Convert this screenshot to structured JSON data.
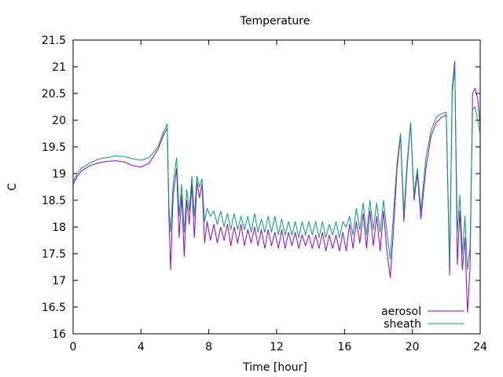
{
  "chart_data": {
    "type": "line",
    "title": "Temperature",
    "xlabel": "Time [hour]",
    "ylabel": "C",
    "xlim": [
      0,
      24
    ],
    "ylim": [
      16,
      21.5
    ],
    "xticks": [
      0,
      4,
      8,
      12,
      16,
      20,
      24
    ],
    "xtick_labels": [
      "0",
      "4",
      "8",
      "12",
      "16",
      "20",
      "24"
    ],
    "yticks": [
      16,
      16.5,
      17,
      17.5,
      18,
      18.5,
      19,
      19.5,
      20,
      20.5,
      21,
      21.5
    ],
    "ytick_labels": [
      "16",
      "16.5",
      "17",
      "17.5",
      "18",
      "18.5",
      "19",
      "19.5",
      "20",
      "20.5",
      "21",
      "21.5"
    ],
    "grid": false,
    "legend_position": "bottom-right",
    "series": [
      {
        "name": "aerosol",
        "color": "#9400d3",
        "x": [
          0,
          0.25,
          0.5,
          1,
          1.5,
          2,
          2.5,
          3,
          3.5,
          4,
          4.5,
          5,
          5.3,
          5.55,
          5.65,
          5.75,
          5.9,
          6.1,
          6.25,
          6.4,
          6.55,
          6.7,
          6.85,
          7.0,
          7.15,
          7.3,
          7.45,
          7.6,
          7.75,
          7.9,
          8.1,
          8.3,
          8.5,
          8.7,
          8.9,
          9.1,
          9.3,
          9.5,
          9.7,
          9.9,
          10.1,
          10.3,
          10.5,
          10.7,
          10.9,
          11.1,
          11.3,
          11.5,
          11.7,
          11.9,
          12.1,
          12.3,
          12.5,
          12.7,
          12.9,
          13.1,
          13.3,
          13.5,
          13.7,
          13.9,
          14.1,
          14.3,
          14.5,
          14.7,
          14.9,
          15.1,
          15.3,
          15.5,
          15.7,
          15.9,
          16.1,
          16.3,
          16.5,
          16.7,
          16.9,
          17.1,
          17.3,
          17.5,
          17.7,
          17.9,
          18.1,
          18.3,
          18.5,
          18.7,
          18.9,
          19.1,
          19.3,
          19.5,
          19.7,
          19.9,
          20.1,
          20.3,
          20.5,
          20.8,
          21.1,
          21.4,
          21.7,
          22.0,
          22.2,
          22.35,
          22.5,
          22.65,
          22.8,
          22.95,
          23.1,
          23.25,
          23.4,
          23.55,
          23.7,
          23.85,
          24.0
        ],
        "y": [
          18.8,
          18.95,
          19.05,
          19.15,
          19.2,
          19.23,
          19.24,
          19.22,
          19.15,
          19.12,
          19.2,
          19.45,
          19.7,
          19.85,
          18.2,
          17.2,
          18.6,
          19.1,
          17.8,
          18.6,
          17.45,
          18.5,
          18.05,
          18.8,
          17.8,
          18.85,
          18.55,
          18.8,
          17.7,
          18.1,
          17.75,
          18.05,
          17.7,
          18.0,
          17.75,
          18.05,
          17.65,
          18.0,
          17.7,
          18.05,
          17.65,
          17.95,
          17.7,
          18.0,
          17.65,
          17.95,
          17.6,
          17.95,
          17.65,
          17.9,
          17.6,
          17.95,
          17.6,
          17.9,
          17.65,
          17.9,
          17.6,
          17.85,
          17.65,
          17.85,
          17.6,
          17.85,
          17.6,
          17.9,
          17.55,
          17.85,
          17.6,
          17.85,
          17.55,
          17.9,
          17.55,
          18.05,
          17.6,
          18.1,
          17.7,
          18.25,
          17.6,
          18.3,
          17.65,
          18.2,
          17.55,
          18.3,
          17.55,
          17.05,
          18.0,
          19.1,
          19.7,
          18.1,
          19.15,
          19.95,
          18.5,
          19.0,
          18.15,
          19.1,
          19.7,
          19.95,
          20.05,
          20.1,
          17.1,
          20.6,
          21.1,
          17.3,
          18.3,
          17.2,
          17.8,
          16.4,
          17.2,
          20.5,
          20.6,
          20.4,
          19.9
        ]
      },
      {
        "name": "sheath",
        "color": "#009e73",
        "x": [
          0,
          0.25,
          0.5,
          1,
          1.5,
          2,
          2.5,
          3,
          3.5,
          4,
          4.5,
          5,
          5.3,
          5.55,
          5.65,
          5.75,
          5.9,
          6.1,
          6.25,
          6.4,
          6.55,
          6.7,
          6.85,
          7.0,
          7.15,
          7.3,
          7.45,
          7.6,
          7.75,
          7.9,
          8.1,
          8.3,
          8.5,
          8.7,
          8.9,
          9.1,
          9.3,
          9.5,
          9.7,
          9.9,
          10.1,
          10.3,
          10.5,
          10.7,
          10.9,
          11.1,
          11.3,
          11.5,
          11.7,
          11.9,
          12.1,
          12.3,
          12.5,
          12.7,
          12.9,
          13.1,
          13.3,
          13.5,
          13.7,
          13.9,
          14.1,
          14.3,
          14.5,
          14.7,
          14.9,
          15.1,
          15.3,
          15.5,
          15.7,
          15.9,
          16.1,
          16.3,
          16.5,
          16.7,
          16.9,
          17.1,
          17.3,
          17.5,
          17.7,
          17.9,
          18.1,
          18.3,
          18.5,
          18.7,
          18.9,
          19.1,
          19.3,
          19.5,
          19.7,
          19.9,
          20.1,
          20.3,
          20.5,
          20.8,
          21.1,
          21.4,
          21.7,
          22.0,
          22.2,
          22.35,
          22.5,
          22.65,
          22.8,
          22.95,
          23.1,
          23.25,
          23.4,
          23.55,
          23.7,
          23.85,
          24.0
        ],
        "y": [
          18.85,
          19.0,
          19.1,
          19.2,
          19.27,
          19.3,
          19.33,
          19.32,
          19.28,
          19.25,
          19.3,
          19.5,
          19.75,
          19.93,
          18.4,
          17.9,
          18.8,
          19.3,
          18.2,
          18.8,
          17.9,
          18.7,
          18.3,
          18.95,
          18.2,
          18.95,
          18.75,
          18.9,
          18.1,
          18.35,
          18.2,
          18.3,
          18.05,
          18.3,
          18.0,
          18.25,
          17.95,
          18.25,
          17.95,
          18.2,
          17.95,
          18.2,
          17.9,
          18.25,
          17.9,
          18.15,
          17.9,
          18.2,
          17.9,
          18.2,
          17.85,
          18.15,
          17.85,
          18.1,
          17.85,
          18.1,
          17.8,
          18.1,
          17.85,
          18.1,
          17.85,
          18.1,
          17.8,
          18.1,
          17.8,
          18.05,
          17.85,
          18.1,
          17.8,
          18.1,
          18.0,
          18.2,
          17.85,
          18.35,
          17.95,
          18.45,
          17.85,
          18.5,
          17.95,
          18.45,
          17.9,
          18.5,
          17.9,
          17.4,
          18.3,
          19.2,
          19.75,
          18.25,
          19.25,
          19.95,
          18.6,
          19.1,
          18.3,
          19.3,
          19.8,
          20.05,
          20.12,
          20.15,
          17.3,
          20.5,
          21.0,
          17.9,
          18.6,
          17.5,
          18.2,
          17.2,
          17.6,
          20.2,
          20.25,
          20.0,
          19.75
        ]
      }
    ]
  }
}
